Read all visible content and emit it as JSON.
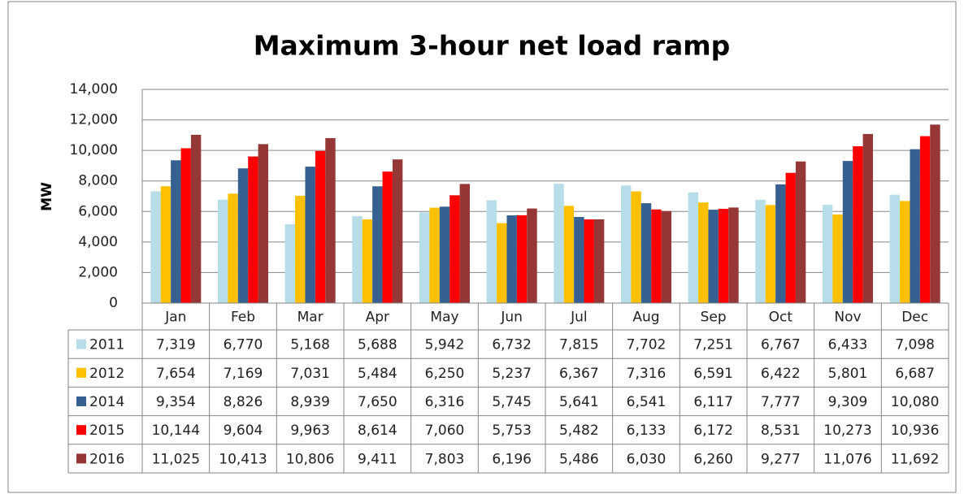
{
  "chart_data": {
    "type": "bar",
    "title": "Maximum 3-hour net load ramp",
    "y_label": "MW",
    "categories": [
      "Jan",
      "Feb",
      "Mar",
      "Apr",
      "May",
      "Jun",
      "Jul",
      "Aug",
      "Sep",
      "Oct",
      "Nov",
      "Dec"
    ],
    "ylim": [
      0,
      14000
    ],
    "yticks": [
      0,
      {
        "value": 2000,
        "label": "2,000"
      },
      {
        "value": 4000,
        "label": "4,000"
      },
      {
        "value": 6000,
        "label": "6,000"
      },
      {
        "value": 8000,
        "label": "8,000"
      },
      {
        "value": 10000,
        "label": "10,000"
      },
      {
        "value": 12000,
        "label": "12,000"
      },
      {
        "value": 14000,
        "label": "14,000"
      }
    ],
    "grid": true,
    "series": [
      {
        "name": "2011",
        "color": "#b7dde8",
        "values": [
          7319,
          6770,
          5168,
          5688,
          5942,
          6732,
          7815,
          7702,
          7251,
          6767,
          6433,
          7098
        ],
        "value_labels": [
          "7,319",
          "6,770",
          "5,168",
          "5,688",
          "5,942",
          "6,732",
          "7,815",
          "7,702",
          "7,251",
          "6,767",
          "6,433",
          "7,098"
        ]
      },
      {
        "name": "2012",
        "color": "#ffc000",
        "values": [
          7654,
          7169,
          7031,
          5484,
          6250,
          5237,
          6367,
          7316,
          6591,
          6422,
          5801,
          6687
        ],
        "value_labels": [
          "7,654",
          "7,169",
          "7,031",
          "5,484",
          "6,250",
          "5,237",
          "6,367",
          "7,316",
          "6,591",
          "6,422",
          "5,801",
          "6,687"
        ]
      },
      {
        "name": "2014",
        "color": "#376092",
        "values": [
          9354,
          8826,
          8939,
          7650,
          6316,
          5745,
          5641,
          6541,
          6117,
          7777,
          9309,
          10080
        ],
        "value_labels": [
          "9,354",
          "8,826",
          "8,939",
          "7,650",
          "6,316",
          "5,745",
          "5,641",
          "6,541",
          "6,117",
          "7,777",
          "9,309",
          "10,080"
        ]
      },
      {
        "name": "2015",
        "color": "#ff0000",
        "values": [
          10144,
          9604,
          9963,
          8614,
          7060,
          5753,
          5482,
          6133,
          6172,
          8531,
          10273,
          10936
        ],
        "value_labels": [
          "10,144",
          "9,604",
          "9,963",
          "8,614",
          "7,060",
          "5,753",
          "5,482",
          "6,133",
          "6,172",
          "8,531",
          "10,273",
          "10,936"
        ]
      },
      {
        "name": "2016",
        "color": "#953735",
        "values": [
          11025,
          10413,
          10806,
          9411,
          7803,
          6196,
          5486,
          6030,
          6260,
          9277,
          11076,
          11692
        ],
        "value_labels": [
          "11,025",
          "10,413",
          "10,806",
          "9,411",
          "7,803",
          "6,196",
          "5,486",
          "6,030",
          "6,260",
          "9,277",
          "11,076",
          "11,692"
        ]
      }
    ]
  }
}
